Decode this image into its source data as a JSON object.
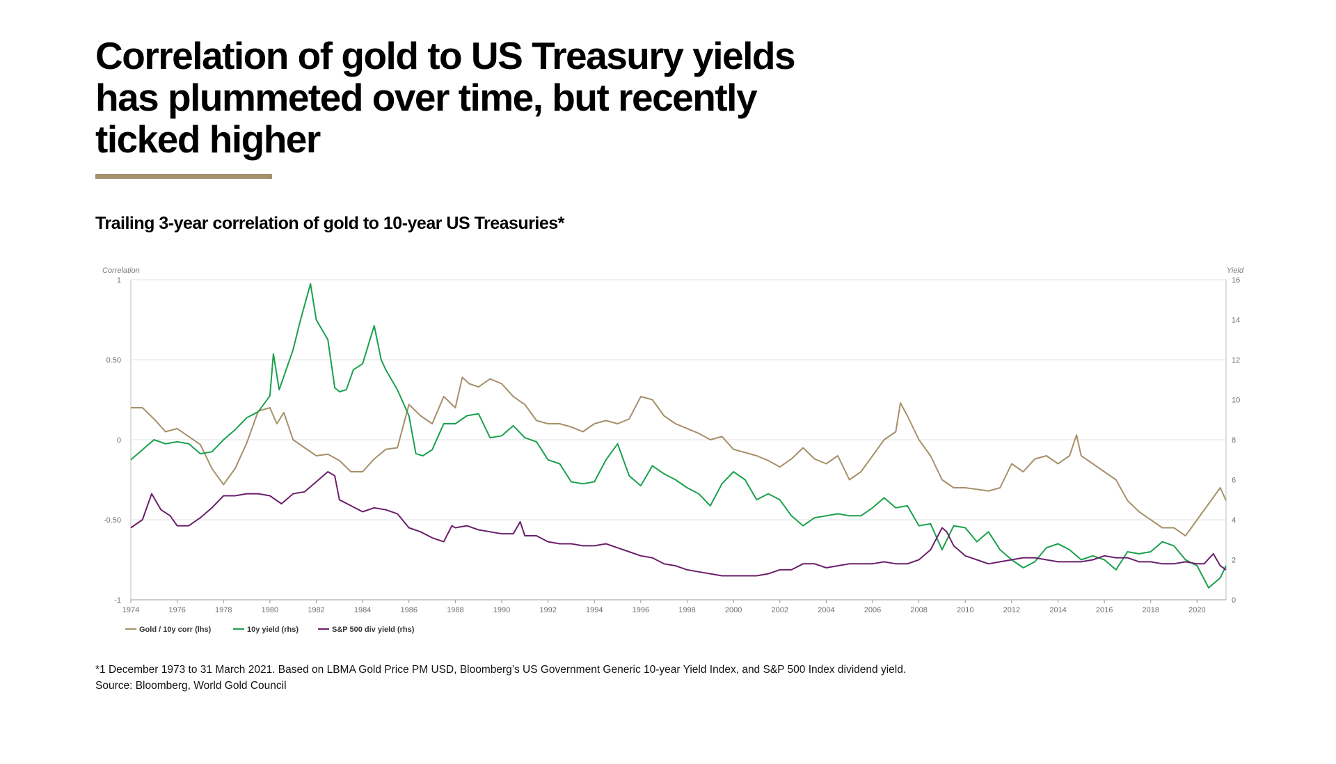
{
  "header": {
    "title_lines": [
      "Correlation of gold to US Treasury yields",
      "has plummeted over time, but recently",
      "ticked higher"
    ],
    "subtitle": "Trailing 3-year correlation of gold to 10-year US Treasuries*"
  },
  "footer": {
    "note": "*1 December 1973 to 31 March 2021. Based on LBMA Gold Price PM USD, Bloomberg’s US Government Generic 10-year Yield Index, and S&P 500 Index dividend yield.",
    "source": "Source: Bloomberg, World Gold Council"
  },
  "colors": {
    "accent": "#a6906a",
    "gold_line": "#a6906a",
    "yield_line": "#1aa04c",
    "div_line": "#6b1f6b",
    "grid": "#e2e2e2"
  },
  "chart_data": {
    "type": "line",
    "x_start": 1974.0,
    "x_end": 2021.25,
    "x_ticks": [
      "1974",
      "1976",
      "1978",
      "1980",
      "1982",
      "1984",
      "1986",
      "1988",
      "1990",
      "1992",
      "1994",
      "1996",
      "1998",
      "2000",
      "2002",
      "2004",
      "2006",
      "2008",
      "2010",
      "2012",
      "2014",
      "2016",
      "2018",
      "2020"
    ],
    "y_left": {
      "label": "Correlation",
      "min": -1,
      "max": 1,
      "ticks": [
        "-1",
        "-0.50",
        "0",
        "0.50",
        "1"
      ]
    },
    "y_right": {
      "label": "Yield",
      "min": 0,
      "max": 16,
      "ticks": [
        "0",
        "2",
        "4",
        "6",
        "8",
        "10",
        "12",
        "14",
        "16"
      ]
    },
    "grid": "horizontal",
    "legend_position": "bottom-left",
    "series": [
      {
        "name": "Gold / 10y corr (lhs)",
        "axis": "left",
        "color": "#a6906a",
        "x": [
          1974.0,
          1974.5,
          1975.0,
          1975.5,
          1976.0,
          1976.5,
          1977.0,
          1977.5,
          1978.0,
          1978.5,
          1979.0,
          1979.5,
          1980.0,
          1980.3,
          1980.6,
          1981.0,
          1981.5,
          1982.0,
          1982.5,
          1983.0,
          1983.5,
          1984.0,
          1984.5,
          1985.0,
          1985.5,
          1986.0,
          1986.5,
          1987.0,
          1987.5,
          1988.0,
          1988.3,
          1988.6,
          1989.0,
          1989.5,
          1990.0,
          1990.5,
          1991.0,
          1991.5,
          1992.0,
          1992.5,
          1993.0,
          1993.5,
          1994.0,
          1994.5,
          1995.0,
          1995.5,
          1996.0,
          1996.5,
          1997.0,
          1997.5,
          1998.0,
          1998.5,
          1999.0,
          1999.5,
          2000.0,
          2000.5,
          2001.0,
          2001.5,
          2002.0,
          2002.5,
          2003.0,
          2003.5,
          2004.0,
          2004.5,
          2005.0,
          2005.5,
          2006.0,
          2006.5,
          2007.0,
          2007.2,
          2007.5,
          2008.0,
          2008.5,
          2009.0,
          2009.5,
          2010.0,
          2010.5,
          2011.0,
          2011.5,
          2012.0,
          2012.5,
          2013.0,
          2013.5,
          2014.0,
          2014.5,
          2014.8,
          2015.0,
          2015.5,
          2016.0,
          2016.5,
          2017.0,
          2017.5,
          2018.0,
          2018.5,
          2019.0,
          2019.5,
          2020.0,
          2020.5,
          2021.0,
          2021.25
        ],
        "y": [
          0.2,
          0.2,
          0.13,
          0.05,
          0.07,
          0.02,
          -0.03,
          -0.18,
          -0.28,
          -0.18,
          -0.02,
          0.18,
          0.2,
          0.1,
          0.17,
          0.0,
          -0.05,
          -0.1,
          -0.09,
          -0.13,
          -0.2,
          -0.2,
          -0.12,
          -0.06,
          -0.05,
          0.22,
          0.15,
          0.1,
          0.27,
          0.2,
          0.39,
          0.35,
          0.33,
          0.38,
          0.35,
          0.27,
          0.22,
          0.12,
          0.1,
          0.1,
          0.08,
          0.05,
          0.1,
          0.12,
          0.1,
          0.13,
          0.27,
          0.25,
          0.15,
          0.1,
          0.07,
          0.04,
          0.0,
          0.02,
          -0.06,
          -0.08,
          -0.1,
          -0.13,
          -0.17,
          -0.12,
          -0.05,
          -0.12,
          -0.15,
          -0.1,
          -0.25,
          -0.2,
          -0.1,
          0.0,
          0.05,
          0.23,
          0.15,
          0.0,
          -0.1,
          -0.25,
          -0.3,
          -0.3,
          -0.31,
          -0.32,
          -0.3,
          -0.15,
          -0.2,
          -0.12,
          -0.1,
          -0.15,
          -0.1,
          0.03,
          -0.1,
          -0.15,
          -0.2,
          -0.25,
          -0.38,
          -0.45,
          -0.5,
          -0.55,
          -0.55,
          -0.6,
          -0.5,
          -0.4,
          -0.3,
          -0.38
        ]
      },
      {
        "name": "10y yield (rhs)",
        "axis": "right",
        "color": "#1aa04c",
        "x": [
          1974.0,
          1974.5,
          1975.0,
          1975.5,
          1976.0,
          1976.5,
          1977.0,
          1977.5,
          1978.0,
          1978.5,
          1979.0,
          1979.5,
          1980.0,
          1980.15,
          1980.4,
          1980.7,
          1981.0,
          1981.3,
          1981.75,
          1982.0,
          1982.5,
          1982.8,
          1983.0,
          1983.3,
          1983.6,
          1984.0,
          1984.5,
          1984.8,
          1985.0,
          1985.5,
          1986.0,
          1986.3,
          1986.6,
          1987.0,
          1987.5,
          1988.0,
          1988.5,
          1989.0,
          1989.5,
          1990.0,
          1990.5,
          1991.0,
          1991.5,
          1992.0,
          1992.5,
          1993.0,
          1993.5,
          1994.0,
          1994.5,
          1995.0,
          1995.5,
          1996.0,
          1996.5,
          1997.0,
          1997.5,
          1998.0,
          1998.5,
          1999.0,
          1999.5,
          2000.0,
          2000.5,
          2001.0,
          2001.5,
          2002.0,
          2002.5,
          2003.0,
          2003.5,
          2004.0,
          2004.5,
          2005.0,
          2005.5,
          2006.0,
          2006.5,
          2007.0,
          2007.5,
          2008.0,
          2008.5,
          2009.0,
          2009.5,
          2010.0,
          2010.5,
          2011.0,
          2011.5,
          2012.0,
          2012.5,
          2013.0,
          2013.5,
          2014.0,
          2014.5,
          2015.0,
          2015.5,
          2016.0,
          2016.5,
          2017.0,
          2017.5,
          2018.0,
          2018.5,
          2019.0,
          2019.5,
          2020.0,
          2020.5,
          2021.0,
          2021.25
        ],
        "y": [
          7.0,
          7.5,
          8.0,
          7.8,
          7.9,
          7.8,
          7.3,
          7.4,
          8.0,
          8.5,
          9.1,
          9.4,
          10.2,
          12.3,
          10.5,
          11.5,
          12.5,
          13.9,
          15.8,
          14.0,
          13.0,
          10.6,
          10.4,
          10.5,
          11.5,
          11.8,
          13.7,
          12.0,
          11.5,
          10.5,
          9.2,
          7.3,
          7.2,
          7.5,
          8.8,
          8.8,
          9.2,
          9.3,
          8.1,
          8.2,
          8.7,
          8.1,
          7.9,
          7.0,
          6.8,
          5.9,
          5.8,
          5.9,
          7.0,
          7.8,
          6.2,
          5.7,
          6.7,
          6.3,
          6.0,
          5.6,
          5.3,
          4.7,
          5.8,
          6.4,
          6.0,
          5.0,
          5.3,
          5.0,
          4.2,
          3.7,
          4.1,
          4.2,
          4.3,
          4.2,
          4.2,
          4.6,
          5.1,
          4.6,
          4.7,
          3.7,
          3.8,
          2.5,
          3.7,
          3.6,
          2.9,
          3.4,
          2.5,
          2.0,
          1.6,
          1.9,
          2.6,
          2.8,
          2.5,
          2.0,
          2.2,
          2.0,
          1.5,
          2.4,
          2.3,
          2.4,
          2.9,
          2.7,
          2.0,
          1.7,
          0.6,
          1.1,
          1.7
        ]
      },
      {
        "name": "S&P 500 div yield (rhs)",
        "axis": "right",
        "color": "#6b1f6b",
        "x": [
          1974.0,
          1974.5,
          1974.9,
          1975.3,
          1975.7,
          1976.0,
          1976.5,
          1977.0,
          1977.5,
          1978.0,
          1978.5,
          1979.0,
          1979.5,
          1980.0,
          1980.5,
          1981.0,
          1981.5,
          1982.0,
          1982.5,
          1982.8,
          1983.0,
          1983.5,
          1984.0,
          1984.5,
          1985.0,
          1985.5,
          1986.0,
          1986.5,
          1987.0,
          1987.5,
          1987.85,
          1988.0,
          1988.5,
          1989.0,
          1989.5,
          1990.0,
          1990.5,
          1990.8,
          1991.0,
          1991.5,
          1992.0,
          1992.5,
          1993.0,
          1993.5,
          1994.0,
          1994.5,
          1995.0,
          1995.5,
          1996.0,
          1996.5,
          1997.0,
          1997.5,
          1998.0,
          1998.5,
          1999.0,
          1999.5,
          2000.0,
          2000.5,
          2001.0,
          2001.5,
          2002.0,
          2002.5,
          2003.0,
          2003.5,
          2004.0,
          2004.5,
          2005.0,
          2005.5,
          2006.0,
          2006.5,
          2007.0,
          2007.5,
          2008.0,
          2008.5,
          2009.0,
          2009.2,
          2009.5,
          2010.0,
          2010.5,
          2011.0,
          2011.5,
          2012.0,
          2012.5,
          2013.0,
          2013.5,
          2014.0,
          2014.5,
          2015.0,
          2015.5,
          2016.0,
          2016.5,
          2017.0,
          2017.5,
          2018.0,
          2018.5,
          2019.0,
          2019.5,
          2020.0,
          2020.3,
          2020.7,
          2021.0,
          2021.25
        ],
        "y": [
          3.6,
          4.0,
          5.3,
          4.5,
          4.2,
          3.7,
          3.7,
          4.1,
          4.6,
          5.2,
          5.2,
          5.3,
          5.3,
          5.2,
          4.8,
          5.3,
          5.4,
          5.9,
          6.4,
          6.2,
          5.0,
          4.7,
          4.4,
          4.6,
          4.5,
          4.3,
          3.6,
          3.4,
          3.1,
          2.9,
          3.7,
          3.6,
          3.7,
          3.5,
          3.4,
          3.3,
          3.3,
          3.9,
          3.2,
          3.2,
          2.9,
          2.8,
          2.8,
          2.7,
          2.7,
          2.8,
          2.6,
          2.4,
          2.2,
          2.1,
          1.8,
          1.7,
          1.5,
          1.4,
          1.3,
          1.2,
          1.2,
          1.2,
          1.2,
          1.3,
          1.5,
          1.5,
          1.8,
          1.8,
          1.6,
          1.7,
          1.8,
          1.8,
          1.8,
          1.9,
          1.8,
          1.8,
          2.0,
          2.5,
          3.6,
          3.4,
          2.7,
          2.2,
          2.0,
          1.8,
          1.9,
          2.0,
          2.1,
          2.1,
          2.0,
          1.9,
          1.9,
          1.9,
          2.0,
          2.2,
          2.1,
          2.1,
          1.9,
          1.9,
          1.8,
          1.8,
          1.9,
          1.8,
          1.8,
          2.3,
          1.7,
          1.5
        ]
      }
    ]
  }
}
